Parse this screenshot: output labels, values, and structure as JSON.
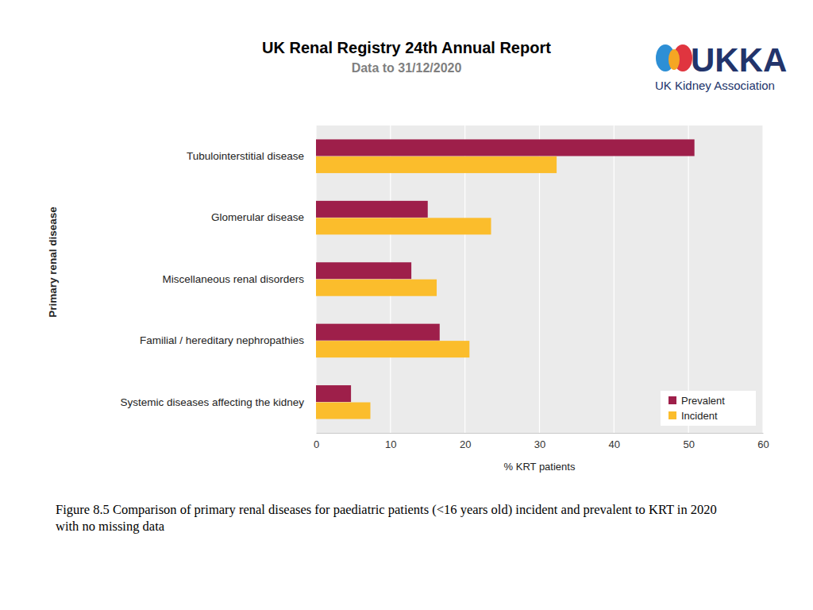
{
  "header": {
    "title": "UK Renal Registry 24th Annual Report",
    "subtitle": "Data to 31/12/2020",
    "logo_text": "UKKA",
    "logo_subtitle": "UK Kidney Association"
  },
  "chart_data": {
    "type": "bar",
    "orientation": "horizontal",
    "categories": [
      "Tubulointerstitial disease",
      "Glomerular disease",
      "Miscellaneous renal disorders",
      "Familial / hereditary nephropathies",
      "Systemic diseases affecting the kidney"
    ],
    "series": [
      {
        "name": "Prevalent",
        "color": "#9e1f4a",
        "values": [
          50.8,
          15.0,
          12.8,
          16.6,
          4.7
        ]
      },
      {
        "name": "Incident",
        "color": "#fbbd2c",
        "values": [
          32.3,
          23.5,
          16.2,
          20.6,
          7.3
        ]
      }
    ],
    "xlabel": "% KRT patients",
    "ylabel": "Primary renal disease",
    "xlim": [
      0,
      60
    ],
    "xticks": [
      0,
      10,
      20,
      30,
      40,
      50,
      60
    ],
    "grid": true,
    "legend": "lower right"
  },
  "caption": [
    "Figure 8.5 Comparison of primary renal diseases for paediatric patients (<16 years old) incident and prevalent to KRT in 2020",
    "with no missing data"
  ]
}
